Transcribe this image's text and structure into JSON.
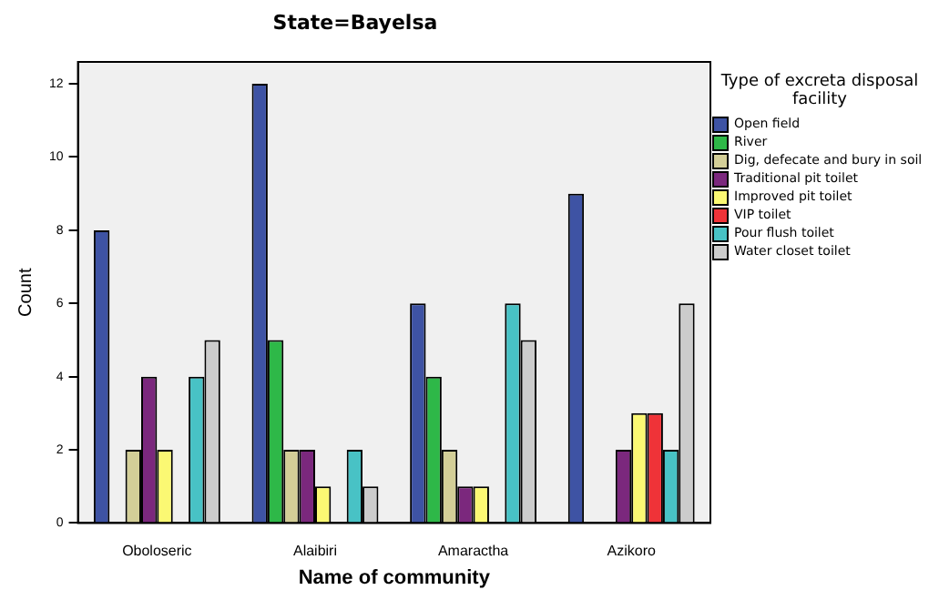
{
  "chart_data": {
    "type": "bar",
    "title": "State=Bayelsa",
    "xlabel": "Name of community",
    "ylabel": "Count",
    "legend_title": "Type of excreta disposal facility",
    "categories": [
      "Oboloseric",
      "Alaibiri",
      "Amaractha",
      "Azikoro"
    ],
    "series": [
      {
        "name": "Open field",
        "color": "#3e53a4",
        "values": [
          8,
          12,
          6,
          9
        ]
      },
      {
        "name": "River",
        "color": "#2eb848",
        "values": [
          null,
          5,
          4,
          null
        ]
      },
      {
        "name": "Dig, defecate and bury in soil",
        "color": "#d3ce97",
        "values": [
          2,
          2,
          2,
          null
        ]
      },
      {
        "name": "Traditional pit toilet",
        "color": "#7b287d",
        "values": [
          4,
          2,
          1,
          2
        ]
      },
      {
        "name": "Improved pit toilet",
        "color": "#fbf873",
        "values": [
          2,
          1,
          1,
          3
        ]
      },
      {
        "name": "VIP toilet",
        "color": "#ef3338",
        "values": [
          null,
          null,
          null,
          3
        ]
      },
      {
        "name": "Pour flush toilet",
        "color": "#48c2c5",
        "values": [
          4,
          2,
          6,
          2
        ]
      },
      {
        "name": "Water closet toilet",
        "color": "#cccccc",
        "values": [
          5,
          1,
          5,
          6
        ]
      }
    ],
    "ylim": [
      0,
      12.6
    ],
    "yticks": [
      0,
      2,
      4,
      6,
      8,
      10,
      12
    ],
    "grid": false,
    "legend": "right"
  }
}
